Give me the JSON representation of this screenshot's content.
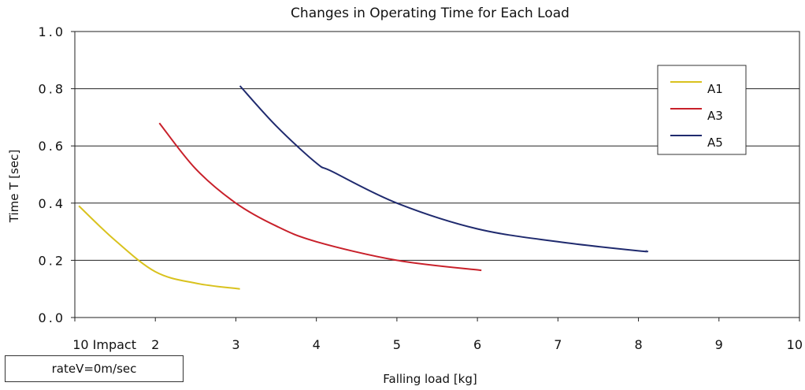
{
  "chart_data": {
    "type": "line",
    "title": "Changes in Operating Time for Each Load",
    "xlabel": "Falling load [kg]",
    "ylabel": "Time  T  [sec]",
    "xlim": [
      1,
      10
    ],
    "ylim": [
      0.0,
      1.0
    ],
    "x_ticks": [
      {
        "value": 1,
        "label": "10 Impact"
      },
      {
        "value": 2,
        "label": "2"
      },
      {
        "value": 3,
        "label": "3"
      },
      {
        "value": 4,
        "label": "4"
      },
      {
        "value": 5,
        "label": "5"
      },
      {
        "value": 6,
        "label": "6"
      },
      {
        "value": 7,
        "label": "7"
      },
      {
        "value": 8,
        "label": "8"
      },
      {
        "value": 9,
        "label": "9"
      },
      {
        "value": 10,
        "label": "10"
      }
    ],
    "y_ticks": [
      {
        "value": 0.0,
        "label": "0.0"
      },
      {
        "value": 0.2,
        "label": "0.2"
      },
      {
        "value": 0.4,
        "label": "0.4"
      },
      {
        "value": 0.6,
        "label": "0.6"
      },
      {
        "value": 0.8,
        "label": "0.8"
      },
      {
        "value": 1.0,
        "label": "1.0"
      }
    ],
    "grid": true,
    "legend_position": "top-right",
    "series": [
      {
        "name": "A1",
        "color": "#d9c21e",
        "x": [
          1.05,
          1.5,
          2.0,
          2.5,
          3.05
        ],
        "y": [
          0.39,
          0.27,
          0.16,
          0.12,
          0.1
        ]
      },
      {
        "name": "A3",
        "color": "#c8202a",
        "x": [
          2.05,
          2.5,
          3.0,
          3.5,
          4.0,
          5.0,
          6.05
        ],
        "y": [
          0.68,
          0.52,
          0.4,
          0.32,
          0.265,
          0.2,
          0.165
        ]
      },
      {
        "name": "A5",
        "color": "#1f2a6e",
        "x": [
          3.05,
          3.5,
          4.0,
          4.2,
          5.0,
          6.0,
          7.0,
          8.0,
          8.1
        ],
        "y": [
          0.81,
          0.67,
          0.54,
          0.51,
          0.4,
          0.31,
          0.265,
          0.233,
          0.233
        ]
      }
    ]
  },
  "note_box": {
    "text": "rateV=0m/sec"
  }
}
